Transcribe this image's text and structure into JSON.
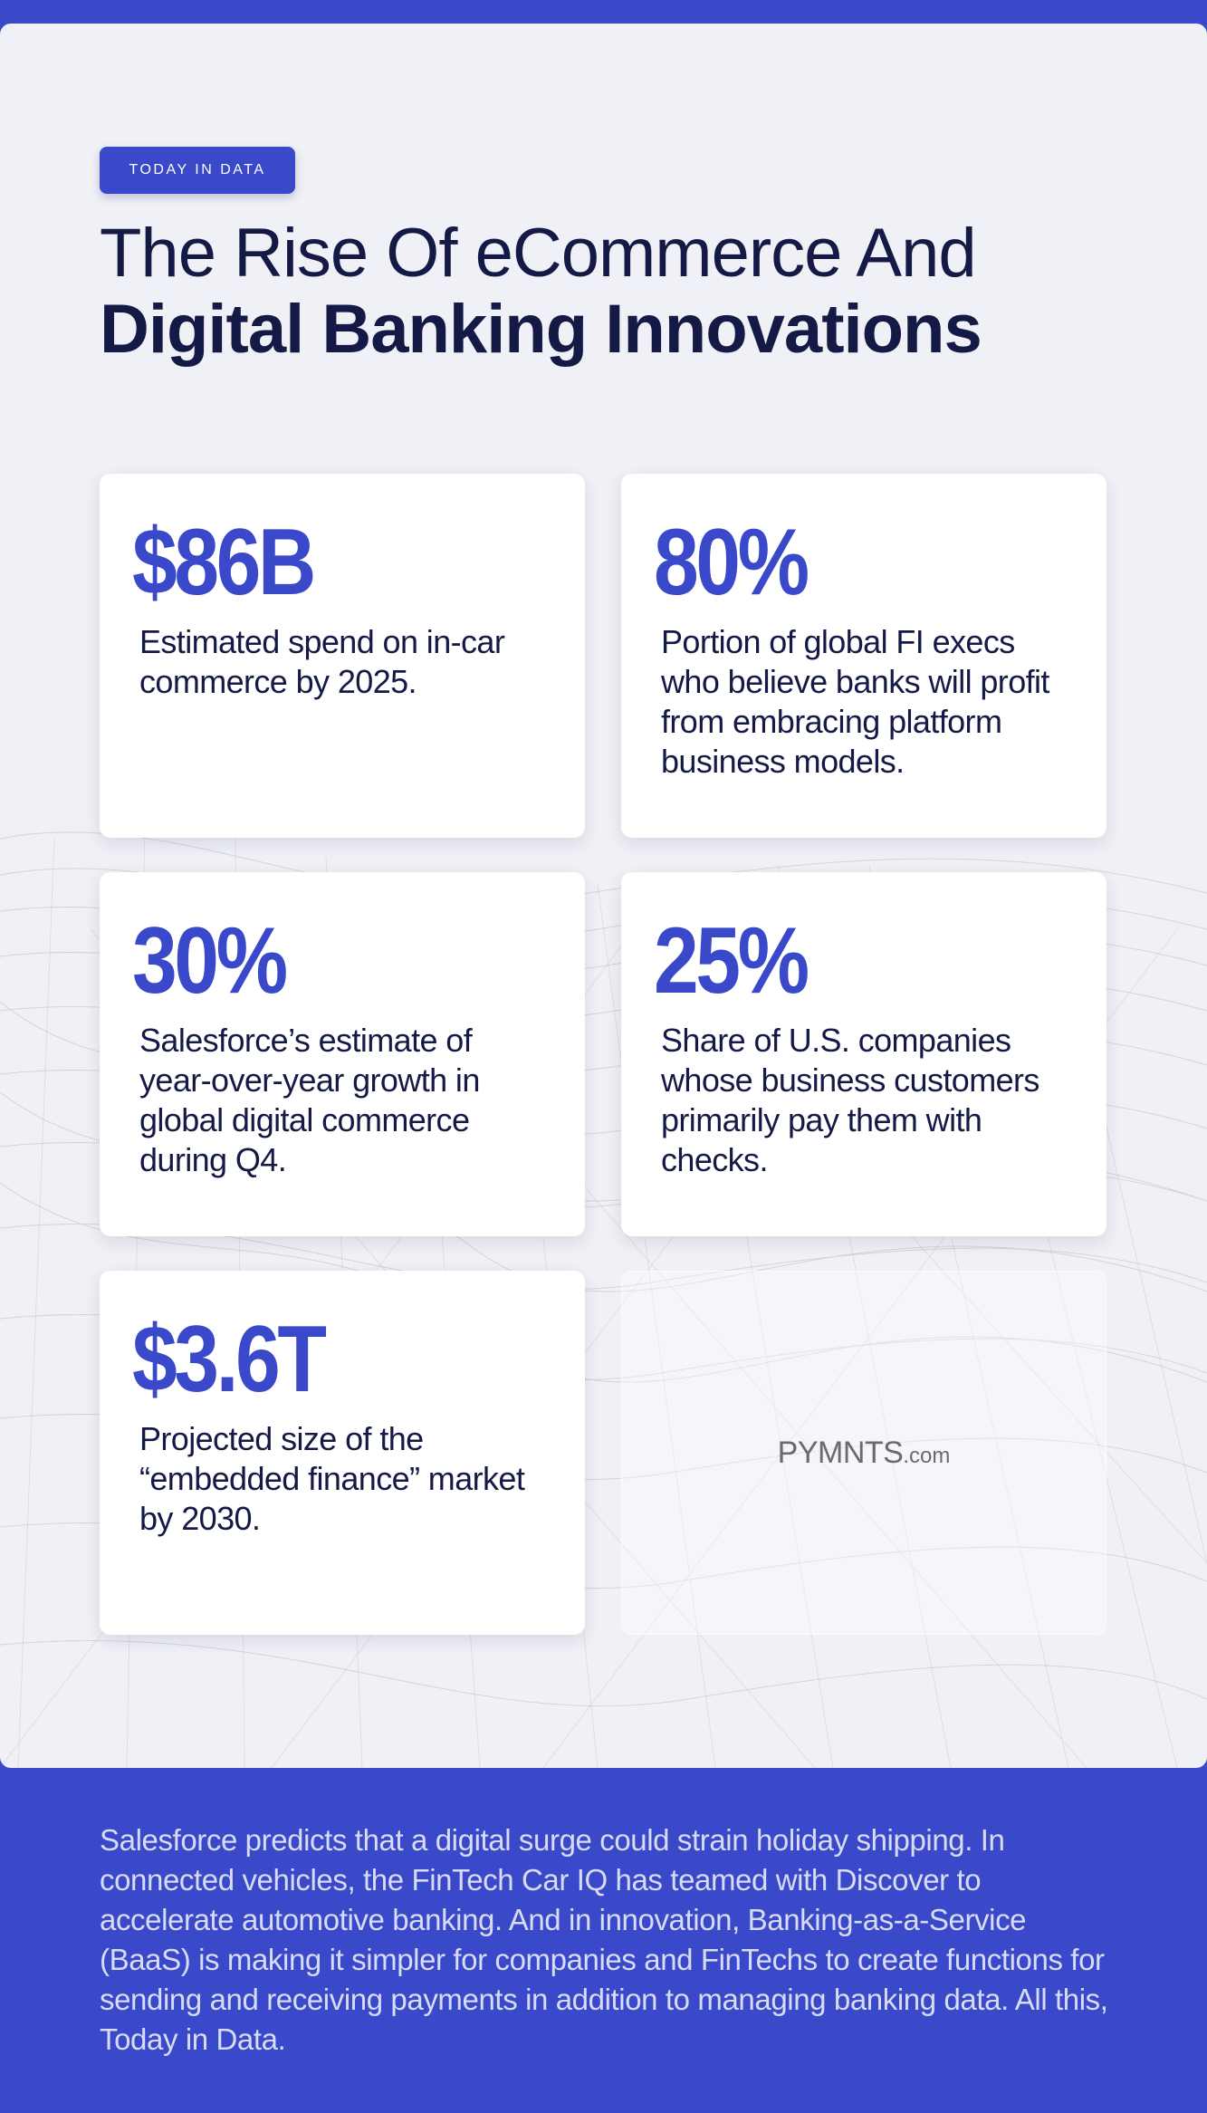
{
  "badge": "TODAY IN DATA",
  "title": {
    "line1": "The Rise Of eCommerce And",
    "line2": "Digital Banking Innovations"
  },
  "stats": [
    {
      "value": "$86B",
      "text": "Estimated spend on in-car commerce by 2025."
    },
    {
      "value": "80%",
      "text": "Portion of global FI execs who believe banks will profit from embracing platform business models."
    },
    {
      "value": "30%",
      "text": "Salesforce’s estimate of year-over-year growth in global digital commerce during Q4."
    },
    {
      "value": "25%",
      "text": "Share of U.S. companies whose business customers primarily pay them with checks."
    },
    {
      "value": "$3.6T",
      "text": "Projected size of the “embedded finance” market by 2030."
    }
  ],
  "logo": {
    "main": "PYMNTS",
    "domain": ".com"
  },
  "footer": "Salesforce predicts that a digital surge could strain holiday shipping. In connected vehicles, the FinTech Car IQ has teamed with Discover to accelerate automotive banking. And in innovation, Banking-as-a-Service (BaaS) is making it simpler for companies and FinTechs to create functions for sending and receiving payments in addition to managing banking data. All this, Today in Data.",
  "colors": {
    "accent": "#3a49c9",
    "heading": "#141a45",
    "panel": "#f0f1f6"
  }
}
